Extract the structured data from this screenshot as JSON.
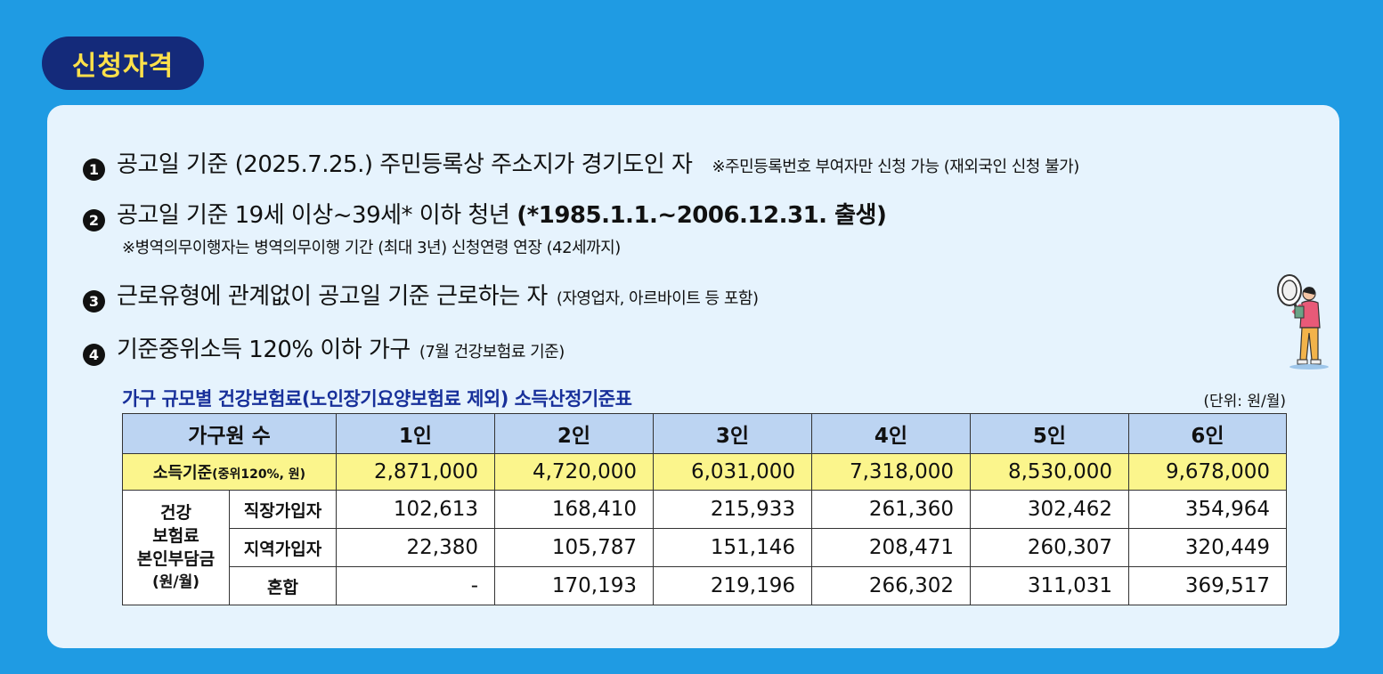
{
  "badge": "신청자격",
  "items": [
    {
      "num": "1",
      "main": "공고일 기준 (2025.7.25.) 주민등록상 주소지가 경기도인 자",
      "small": "※주민등록번호 부여자만 신청 가능 (재외국인 신청 불가)"
    },
    {
      "num": "2",
      "main": "공고일 기준 19세 이상~39세* 이하 청년",
      "main_bold": "(*1985.1.1.~2006.12.31. 출생)",
      "note": "※병역의무이행자는 병역의무이행 기간 (최대 3년) 신청연령 연장 (42세까지)"
    },
    {
      "num": "3",
      "main": "근로유형에 관계없이 공고일 기준 근로하는 자",
      "small": "(자영업자, 아르바이트 등 포함)"
    },
    {
      "num": "4",
      "main": "기준중위소득 120% 이하 가구",
      "small": "(7월 건강보험료 기준)"
    }
  ],
  "table": {
    "title": "가구 규모별 건강보험료(노인장기요양보험료 제외) 소득산정기준표",
    "unit": "(단위: 원/월)",
    "header_label": "가구원 수",
    "columns": [
      "1인",
      "2인",
      "3인",
      "4인",
      "5인",
      "6인"
    ],
    "income_label": "소득기준",
    "income_label_small": "(중위120%, 원)",
    "income": [
      "2,871,000",
      "4,720,000",
      "6,031,000",
      "7,318,000",
      "8,530,000",
      "9,678,000"
    ],
    "group_label": [
      "건강",
      "보험료",
      "본인부담금"
    ],
    "group_unit": "(원/월)",
    "rows": [
      {
        "label": "직장가입자",
        "values": [
          "102,613",
          "168,410",
          "215,933",
          "261,360",
          "302,462",
          "354,964"
        ]
      },
      {
        "label": "지역가입자",
        "values": [
          "22,380",
          "105,787",
          "151,146",
          "208,471",
          "260,307",
          "320,449"
        ]
      },
      {
        "label": "혼합",
        "values": [
          "-",
          "170,193",
          "219,196",
          "266,302",
          "311,031",
          "369,517"
        ]
      }
    ]
  },
  "colors": {
    "background": "#1f9be3",
    "badge_bg": "#142a7a",
    "badge_text": "#ffe14a",
    "card_bg": "#e6f3fd",
    "header_bg": "#bcd4f2",
    "income_bg": "#fbf58c",
    "title_text": "#18309a"
  },
  "icons": [
    "person-with-magnifier-illustration"
  ]
}
